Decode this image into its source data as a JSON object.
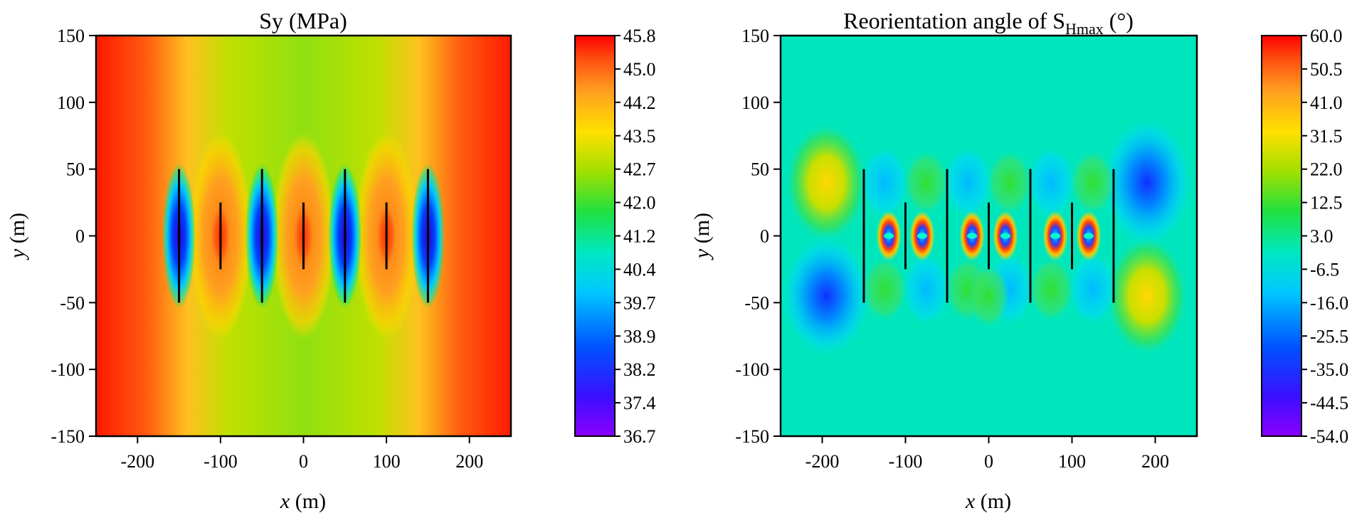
{
  "chart_data": [
    {
      "type": "heatmap",
      "title": "Sy (MPa)",
      "xlabel_var": "x",
      "xlabel_unit": " (m)",
      "ylabel_var": "y",
      "ylabel_unit": " (m)",
      "xlim": [
        -250,
        250
      ],
      "ylim": [
        -150,
        150
      ],
      "xticks": [
        "-200",
        "-100",
        "0",
        "100",
        "200"
      ],
      "xtick_values": [
        -200,
        -100,
        0,
        100,
        200
      ],
      "yticks": [
        "150",
        "100",
        "50",
        "0",
        "-50",
        "-100",
        "-150"
      ],
      "ytick_values": [
        150,
        100,
        50,
        0,
        -50,
        -100,
        -150
      ],
      "colorbar": {
        "labels": [
          "45.8",
          "45.0",
          "44.2",
          "43.5",
          "42.7",
          "42.0",
          "41.2",
          "40.4",
          "39.7",
          "38.9",
          "38.2",
          "37.4",
          "36.7"
        ],
        "min": 36.7,
        "max": 45.8
      },
      "fractures": [
        {
          "x": -150,
          "y1": -50,
          "y2": 50
        },
        {
          "x": -100,
          "y1": -25,
          "y2": 25
        },
        {
          "x": -50,
          "y1": -50,
          "y2": 50
        },
        {
          "x": 0,
          "y1": -25,
          "y2": 25
        },
        {
          "x": 50,
          "y1": -50,
          "y2": 50
        },
        {
          "x": 100,
          "y1": -25,
          "y2": 25
        },
        {
          "x": 150,
          "y1": -50,
          "y2": 50
        }
      ]
    },
    {
      "type": "heatmap",
      "title_main": "Reorientation angle of S",
      "title_sub": "Hmax",
      "title_suffix": " (°)",
      "xlabel_var": "x",
      "xlabel_unit": " (m)",
      "ylabel_var": "y",
      "ylabel_unit": " (m)",
      "xlim": [
        -250,
        250
      ],
      "ylim": [
        -150,
        150
      ],
      "xticks": [
        "-200",
        "-100",
        "0",
        "100",
        "200"
      ],
      "xtick_values": [
        -200,
        -100,
        0,
        100,
        200
      ],
      "yticks": [
        "150",
        "100",
        "50",
        "0",
        "-50",
        "-100",
        "-150"
      ],
      "ytick_values": [
        150,
        100,
        50,
        0,
        -50,
        -100,
        -150
      ],
      "colorbar": {
        "labels": [
          "60.0",
          "50.5",
          "41.0",
          "31.5",
          "22.0",
          "12.5",
          "3.0",
          "-6.5",
          "-16.0",
          "-25.5",
          "-35.0",
          "-44.5",
          "-54.0"
        ],
        "min": -54.0,
        "max": 60.0
      },
      "fractures": [
        {
          "x": -150,
          "y1": -50,
          "y2": 50
        },
        {
          "x": -100,
          "y1": -25,
          "y2": 25
        },
        {
          "x": -50,
          "y1": -50,
          "y2": 50
        },
        {
          "x": 0,
          "y1": -25,
          "y2": 25
        },
        {
          "x": 50,
          "y1": -50,
          "y2": 50
        },
        {
          "x": 100,
          "y1": -25,
          "y2": 25
        },
        {
          "x": 150,
          "y1": -50,
          "y2": 50
        }
      ]
    }
  ],
  "colormap": [
    "#8a00ff",
    "#3a10ff",
    "#0050ff",
    "#00c8ff",
    "#00e8c0",
    "#20e040",
    "#a0e000",
    "#ffe000",
    "#ffa020",
    "#ff5010",
    "#ff0000"
  ]
}
